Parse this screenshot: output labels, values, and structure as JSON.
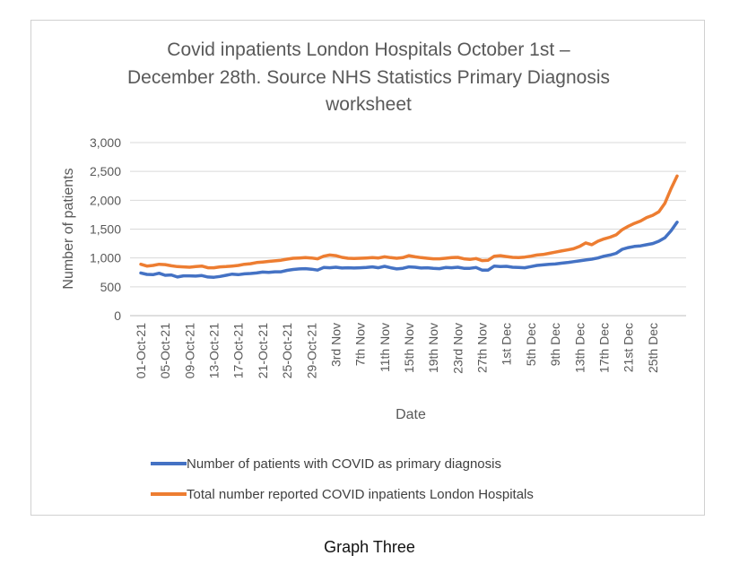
{
  "caption": "Graph Three",
  "chart_data": {
    "type": "line",
    "title_lines": [
      "Covid inpatients London Hospitals October 1st –",
      "December 28th. Source NHS Statistics Primary Diagnosis",
      "worksheet"
    ],
    "xlabel": "Date",
    "ylabel": "Number of patients",
    "ylim": [
      0,
      3000
    ],
    "yticks": [
      "0",
      "500",
      "1,000",
      "1,500",
      "2,000",
      "2,500",
      "3,000"
    ],
    "ytick_values": [
      0,
      500,
      1000,
      1500,
      2000,
      2500,
      3000
    ],
    "x_tick_labels": [
      "01-Oct-21",
      "05-Oct-21",
      "09-Oct-21",
      "13-Oct-21",
      "17-Oct-21",
      "21-Oct-21",
      "25-Oct-21",
      "29-Oct-21",
      "3rd Nov",
      "7th Nov",
      "11th Nov",
      "15th Nov",
      "19th Nov",
      "23rd Nov",
      "27th Nov",
      "1st Dec",
      "5th Dec",
      "9th Dec",
      "13th Dec",
      "17th Dec",
      "21st Dec",
      "25th Dec"
    ],
    "x_tick_interval_days": 4,
    "n_points": 89,
    "grid": true,
    "legend_position": "bottom",
    "series": [
      {
        "name": "Number of patients with COVID as primary diagnosis",
        "color": "#4472C4",
        "values": [
          740,
          715,
          710,
          735,
          700,
          705,
          670,
          690,
          690,
          685,
          695,
          670,
          665,
          680,
          700,
          720,
          710,
          725,
          730,
          740,
          755,
          750,
          760,
          760,
          785,
          800,
          810,
          815,
          805,
          790,
          835,
          830,
          840,
          825,
          830,
          825,
          830,
          835,
          845,
          830,
          855,
          830,
          810,
          820,
          845,
          840,
          825,
          830,
          820,
          815,
          835,
          830,
          840,
          820,
          820,
          835,
          790,
          790,
          860,
          850,
          855,
          840,
          835,
          830,
          850,
          870,
          880,
          890,
          895,
          910,
          920,
          935,
          950,
          965,
          980,
          1000,
          1030,
          1050,
          1080,
          1150,
          1180,
          1200,
          1210,
          1230,
          1250,
          1290,
          1350,
          1470,
          1620
        ]
      },
      {
        "name": "Total number reported COVID inpatients London Hospitals",
        "color": "#ED7D31",
        "values": [
          890,
          860,
          870,
          890,
          885,
          865,
          850,
          845,
          840,
          850,
          860,
          830,
          830,
          845,
          850,
          860,
          870,
          890,
          900,
          920,
          930,
          940,
          950,
          960,
          980,
          995,
          1000,
          1005,
          1000,
          985,
          1030,
          1050,
          1040,
          1010,
          995,
          990,
          995,
          1000,
          1005,
          1000,
          1020,
          1005,
          995,
          1005,
          1040,
          1020,
          1005,
          995,
          985,
          985,
          995,
          1005,
          1010,
          985,
          975,
          990,
          955,
          960,
          1030,
          1040,
          1025,
          1010,
          1005,
          1015,
          1030,
          1050,
          1060,
          1080,
          1100,
          1120,
          1140,
          1160,
          1200,
          1260,
          1230,
          1290,
          1330,
          1360,
          1400,
          1490,
          1550,
          1600,
          1640,
          1700,
          1740,
          1800,
          1950,
          2200,
          2420
        ]
      }
    ]
  }
}
